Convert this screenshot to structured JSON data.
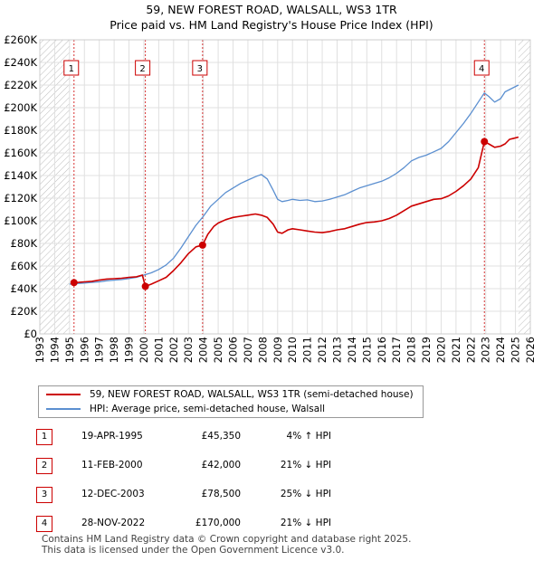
{
  "chart_data": {
    "type": "line",
    "title": "59, NEW FOREST ROAD, WALSALL, WS3 1TR",
    "subtitle": "Price paid vs. HM Land Registry's House Price Index (HPI)",
    "xlabel": "",
    "ylabel": "",
    "xlim": [
      1993,
      2026
    ],
    "ylim": [
      0,
      260000
    ],
    "yticks": [
      0,
      20000,
      40000,
      60000,
      80000,
      100000,
      120000,
      140000,
      160000,
      180000,
      200000,
      220000,
      240000,
      260000
    ],
    "ytick_labels": [
      "£0",
      "£20K",
      "£40K",
      "£60K",
      "£80K",
      "£100K",
      "£120K",
      "£140K",
      "£160K",
      "£180K",
      "£200K",
      "£220K",
      "£240K",
      "£260K"
    ],
    "xticks": [
      "1993",
      "1994",
      "1995",
      "1996",
      "1997",
      "1998",
      "1999",
      "2000",
      "2001",
      "2002",
      "2003",
      "2004",
      "2005",
      "2006",
      "2007",
      "2008",
      "2009",
      "2010",
      "2011",
      "2012",
      "2013",
      "2014",
      "2015",
      "2016",
      "2017",
      "2018",
      "2019",
      "2020",
      "2021",
      "2022",
      "2023",
      "2024",
      "2025",
      "2026"
    ],
    "grid": true,
    "hatched_ranges": [
      [
        1993,
        1995.0
      ],
      [
        2025.2,
        2026
      ]
    ],
    "series": [
      {
        "name": "59, NEW FOREST ROAD, WALSALL, WS3 1TR (semi-detached house)",
        "color": "#cc0000",
        "x": [
          1995.3,
          1995.6,
          1996.0,
          1996.5,
          1997.0,
          1997.5,
          1998.0,
          1998.5,
          1999.0,
          1999.5,
          1999.9,
          2000.1,
          2000.5,
          2001.0,
          2001.5,
          2002.0,
          2002.5,
          2003.0,
          2003.5,
          2003.95,
          2004.3,
          2004.7,
          2005.0,
          2005.5,
          2006.0,
          2006.5,
          2007.0,
          2007.5,
          2007.9,
          2008.3,
          2008.7,
          2009.0,
          2009.3,
          2009.7,
          2010.0,
          2010.5,
          2011.0,
          2011.5,
          2012.0,
          2012.5,
          2013.0,
          2013.5,
          2014.0,
          2014.5,
          2015.0,
          2015.5,
          2016.0,
          2016.5,
          2017.0,
          2017.5,
          2018.0,
          2018.5,
          2019.0,
          2019.5,
          2020.0,
          2020.5,
          2021.0,
          2021.5,
          2022.0,
          2022.5,
          2022.91,
          2023.2,
          2023.6,
          2024.0,
          2024.3,
          2024.6,
          2024.9,
          2025.2
        ],
        "y": [
          45350,
          45500,
          46000,
          46500,
          47500,
          48500,
          48800,
          49200,
          50000,
          50500,
          52000,
          42000,
          44000,
          47000,
          50000,
          56000,
          63000,
          71000,
          77000,
          78500,
          88000,
          95000,
          98000,
          101000,
          103000,
          104000,
          105000,
          106000,
          105000,
          103000,
          97000,
          90000,
          89000,
          92000,
          93000,
          92000,
          91000,
          90000,
          89500,
          90500,
          92000,
          93000,
          95000,
          97000,
          98500,
          99000,
          100000,
          102000,
          105000,
          109000,
          113000,
          115000,
          117000,
          119000,
          119500,
          122000,
          126000,
          131000,
          137000,
          147000,
          170000,
          168000,
          165000,
          166000,
          168000,
          172000,
          173000,
          174000
        ]
      },
      {
        "name": "HPI: Average price, semi-detached house, Walsall",
        "color": "#5b8fd0",
        "x": [
          1995.0,
          1995.5,
          1996.0,
          1996.5,
          1997.0,
          1997.5,
          1998.0,
          1998.5,
          1999.0,
          1999.5,
          2000.0,
          2000.5,
          2001.0,
          2001.5,
          2002.0,
          2002.5,
          2003.0,
          2003.5,
          2004.0,
          2004.5,
          2005.0,
          2005.5,
          2006.0,
          2006.5,
          2007.0,
          2007.5,
          2007.9,
          2008.3,
          2008.7,
          2009.0,
          2009.3,
          2009.7,
          2010.0,
          2010.5,
          2011.0,
          2011.5,
          2012.0,
          2012.5,
          2013.0,
          2013.5,
          2014.0,
          2014.5,
          2015.0,
          2015.5,
          2016.0,
          2016.5,
          2017.0,
          2017.5,
          2018.0,
          2018.5,
          2019.0,
          2019.5,
          2020.0,
          2020.5,
          2021.0,
          2021.5,
          2022.0,
          2022.5,
          2022.9,
          2023.2,
          2023.6,
          2024.0,
          2024.3,
          2024.6,
          2024.9,
          2025.2
        ],
        "y": [
          44000,
          44500,
          45000,
          45500,
          46000,
          47000,
          47500,
          48000,
          49000,
          50000,
          52000,
          54000,
          57000,
          61000,
          67000,
          76000,
          86000,
          96000,
          104000,
          113000,
          119000,
          125000,
          129000,
          133000,
          136000,
          139000,
          141000,
          137000,
          127000,
          119000,
          117000,
          118000,
          119000,
          118000,
          118500,
          117000,
          117500,
          119000,
          121000,
          123000,
          126000,
          129000,
          131000,
          133000,
          135000,
          138000,
          142000,
          147000,
          153000,
          156000,
          158000,
          161000,
          164000,
          170000,
          178000,
          186000,
          195000,
          205000,
          213000,
          210000,
          205000,
          208000,
          214000,
          216000,
          218000,
          220000
        ]
      }
    ],
    "sales_markers": [
      {
        "label": "1",
        "x": 1995.3,
        "y": 45350
      },
      {
        "label": "2",
        "x": 2000.1,
        "y": 42000
      },
      {
        "label": "3",
        "x": 2003.95,
        "y": 78500
      },
      {
        "label": "4",
        "x": 2022.91,
        "y": 170000
      }
    ]
  },
  "legend": {
    "entry1": "59, NEW FOREST ROAD, WALSALL, WS3 1TR (semi-detached house)",
    "entry2": "HPI: Average price, semi-detached house, Walsall"
  },
  "transactions": [
    {
      "num": "1",
      "date": "19-APR-1995",
      "price": "£45,350",
      "hpi": "4% ↑ HPI"
    },
    {
      "num": "2",
      "date": "11-FEB-2000",
      "price": "£42,000",
      "hpi": "21% ↓ HPI"
    },
    {
      "num": "3",
      "date": "12-DEC-2003",
      "price": "£78,500",
      "hpi": "25% ↓ HPI"
    },
    {
      "num": "4",
      "date": "28-NOV-2022",
      "price": "£170,000",
      "hpi": "21% ↓ HPI"
    }
  ],
  "footer": {
    "line1": "Contains HM Land Registry data © Crown copyright and database right 2025.",
    "line2": "This data is licensed under the Open Government Licence v3.0."
  }
}
